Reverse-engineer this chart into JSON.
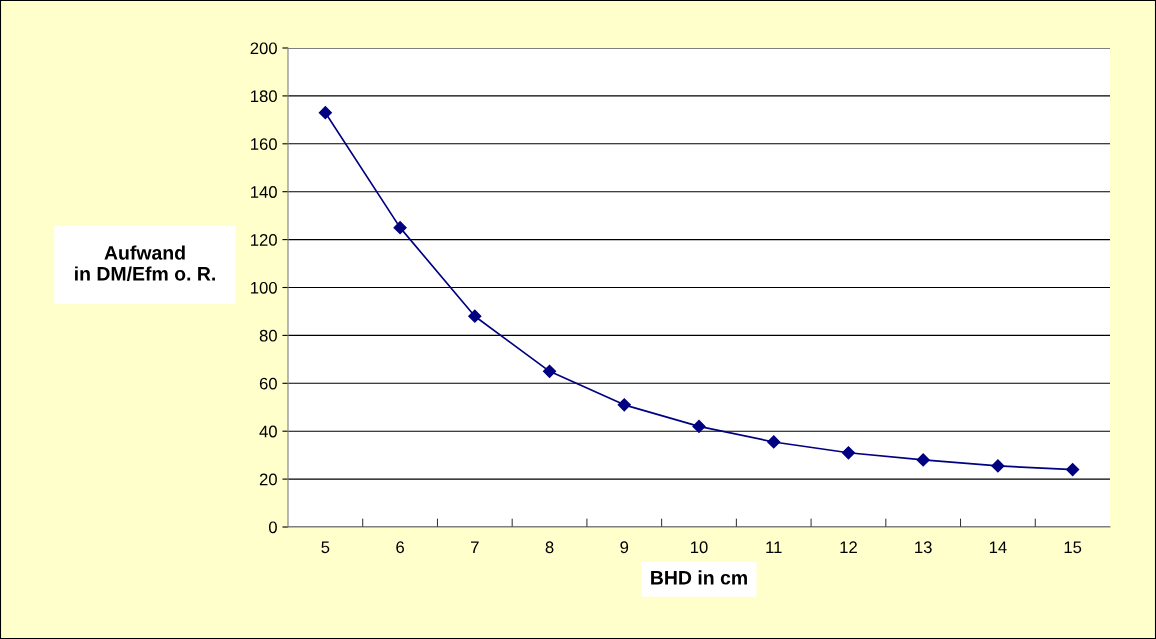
{
  "chart_data": {
    "type": "line",
    "xlabel": "BHD in cm",
    "ylabel": "Aufwand\nin DM/Efm o. R.",
    "categories": [
      "5",
      "6",
      "7",
      "8",
      "9",
      "10",
      "11",
      "12",
      "13",
      "14",
      "15"
    ],
    "series": [
      {
        "color": "#000080",
        "values": [
          173,
          125,
          88,
          65,
          51,
          42,
          35.5,
          31,
          28,
          25.5,
          24
        ]
      }
    ],
    "ylim": [
      0,
      200
    ],
    "yticks": [
      0,
      20,
      40,
      60,
      80,
      100,
      120,
      140,
      160,
      180,
      200
    ],
    "grid": "y",
    "marker": "diamond",
    "line_style": "solid"
  }
}
